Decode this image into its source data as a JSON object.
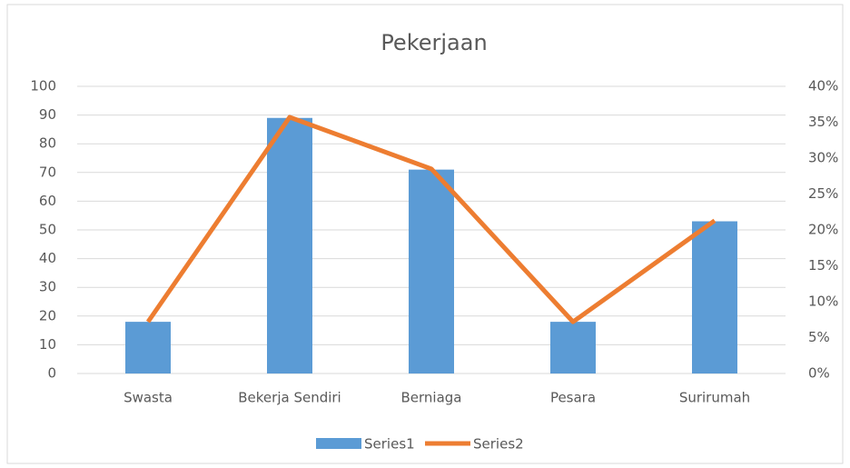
{
  "chart_data": {
    "type": "bar",
    "title": "Pekerjaan",
    "categories": [
      "Swasta",
      "Bekerja Sendiri",
      "Berniaga",
      "Pesara",
      "Surirumah"
    ],
    "series": [
      {
        "name": "Series1",
        "type": "bar",
        "color": "#5b9bd5",
        "values": [
          18,
          89,
          71,
          18,
          53
        ]
      },
      {
        "name": "Series2",
        "type": "line",
        "axis": "y2",
        "color": "#ed7d31",
        "values": [
          7.2,
          35.7,
          28.5,
          7.2,
          21.3
        ]
      }
    ],
    "ylim": [
      0,
      100
    ],
    "yticks": [
      0,
      10,
      20,
      30,
      40,
      50,
      60,
      70,
      80,
      90,
      100
    ],
    "y2lim": [
      0,
      40
    ],
    "y2ticks": [
      {
        "value": 0,
        "label": "0%"
      },
      {
        "value": 5,
        "label": "5%"
      },
      {
        "value": 10,
        "label": "10%"
      },
      {
        "value": 15,
        "label": "15%"
      },
      {
        "value": 20,
        "label": "20%"
      },
      {
        "value": 25,
        "label": "25%"
      },
      {
        "value": 30,
        "label": "30%"
      },
      {
        "value": 35,
        "label": "35%"
      },
      {
        "value": 40,
        "label": "40%"
      }
    ],
    "grid": true,
    "legend": "bottom"
  }
}
